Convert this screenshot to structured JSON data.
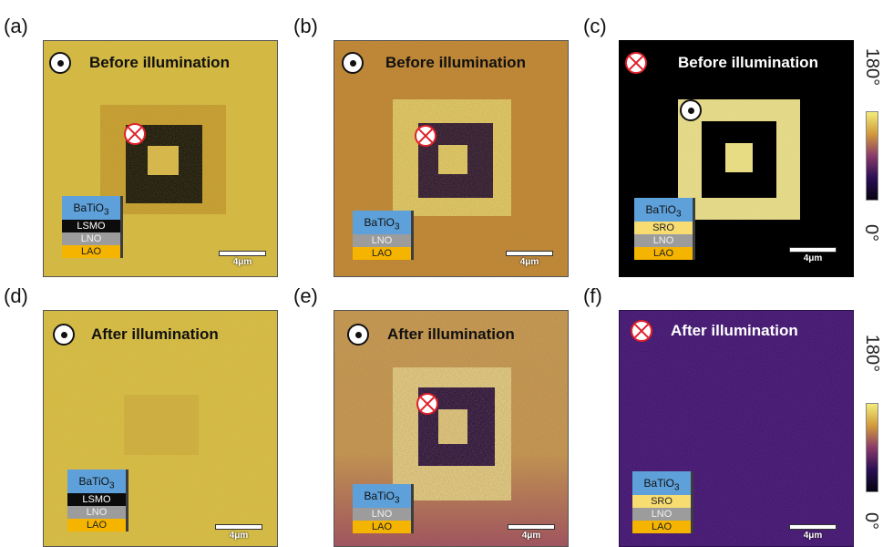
{
  "panel_labels": {
    "a": "(a)",
    "b": "(b)",
    "c": "(c)",
    "d": "(d)",
    "e": "(e)",
    "f": "(f)"
  },
  "titles": {
    "before": "Before illumination",
    "after": "After illumination"
  },
  "stacks": {
    "lsmo": {
      "top_base": "BaTiO",
      "top_sub": "3",
      "layers": [
        "LSMO",
        "LNO",
        "LAO"
      ]
    },
    "lno": {
      "top_base": "BaTiO",
      "top_sub": "3",
      "layers": [
        "LNO",
        "LAO"
      ]
    },
    "sro": {
      "top_base": "BaTiO",
      "top_sub": "3",
      "layers": [
        "SRO",
        "LNO",
        "LAO"
      ]
    }
  },
  "scale_label": "4μm",
  "colorbar": {
    "max_label": "180°",
    "min_label": "0°"
  },
  "icons": {
    "out_of_plane": "dot-circle-icon",
    "into_plane": "cross-circle-icon"
  },
  "colors": {
    "olive": "#cfb23a",
    "orange_brown": "#bd7a2c",
    "light_yellow": "#e8dd7e",
    "dark_purple": "#1c0d33",
    "red_cross": "#e0202a",
    "blue_layer": "#5ea1da",
    "lao": "#f5b400",
    "sro": "#f7dc72",
    "purple_bg": "#3d176a",
    "black": "#000000"
  }
}
